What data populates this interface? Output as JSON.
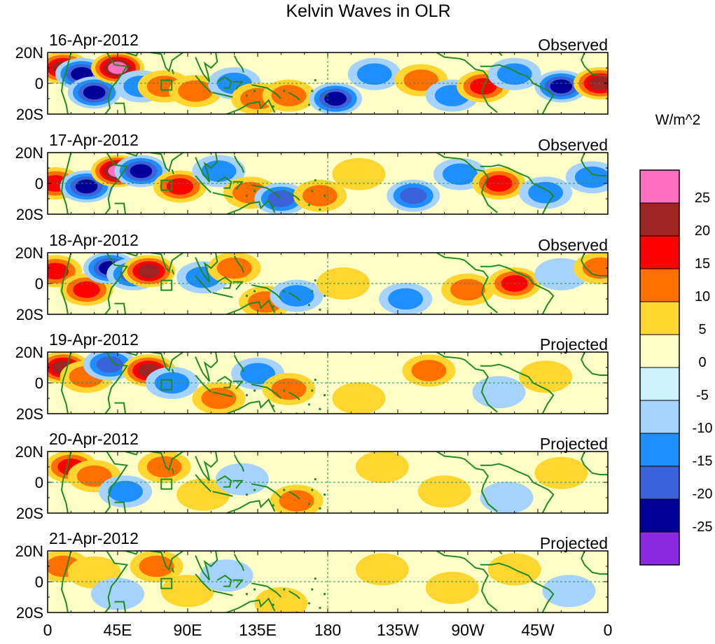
{
  "chart_data": {
    "type": "heatmap",
    "title": "Kelvin Waves in OLR",
    "variable": "OLR anomaly",
    "units": "W/m^2",
    "panels": [
      {
        "date": "16-Apr-2012",
        "status": "Observed"
      },
      {
        "date": "17-Apr-2012",
        "status": "Observed"
      },
      {
        "date": "18-Apr-2012",
        "status": "Observed"
      },
      {
        "date": "19-Apr-2012",
        "status": "Projected"
      },
      {
        "date": "20-Apr-2012",
        "status": "Projected"
      },
      {
        "date": "21-Apr-2012",
        "status": "Projected"
      }
    ],
    "xticks": [
      "0",
      "45E",
      "90E",
      "135E",
      "180",
      "135W",
      "90W",
      "45W",
      "0"
    ],
    "xlim": [
      0,
      360
    ],
    "yticks": [
      "20N",
      "0",
      "20S"
    ],
    "ylim": [
      -20,
      20
    ],
    "colorbar": {
      "label": "W/m^2",
      "levels": [
        "25",
        "20",
        "15",
        "10",
        "5",
        "0",
        "-5",
        "-10",
        "-15",
        "-20",
        "-25"
      ],
      "colors": [
        "#ff6fbe",
        "#9e2424",
        "#ff0000",
        "#ff7000",
        "#ffd630",
        "#ffffc8",
        "#ccf2fb",
        "#a6d2ff",
        "#1f8fff",
        "#3c62d9",
        "#000096",
        "#8a2be2"
      ]
    },
    "anomalies": [
      [
        [
          10,
          10,
          22
        ],
        [
          22,
          6,
          -22
        ],
        [
          30,
          -6,
          -24
        ],
        [
          45,
          10,
          25
        ],
        [
          60,
          -2,
          -14
        ],
        [
          75,
          -2,
          14
        ],
        [
          95,
          -5,
          12
        ],
        [
          120,
          0,
          -14
        ],
        [
          135,
          -10,
          14
        ],
        [
          155,
          -8,
          10
        ],
        [
          185,
          -10,
          -22
        ],
        [
          210,
          6,
          -12
        ],
        [
          240,
          2,
          12
        ],
        [
          260,
          -8,
          -10
        ],
        [
          280,
          -2,
          18
        ],
        [
          300,
          6,
          -14
        ],
        [
          330,
          -2,
          -22
        ],
        [
          355,
          0,
          22
        ]
      ],
      [
        [
          5,
          0,
          18
        ],
        [
          25,
          -2,
          -22
        ],
        [
          45,
          8,
          25
        ],
        [
          60,
          8,
          -22
        ],
        [
          85,
          -2,
          18
        ],
        [
          110,
          8,
          -14
        ],
        [
          130,
          -6,
          12
        ],
        [
          150,
          -10,
          -18
        ],
        [
          175,
          -8,
          14
        ],
        [
          200,
          6,
          8
        ],
        [
          235,
          -8,
          -18
        ],
        [
          265,
          6,
          -12
        ],
        [
          290,
          0,
          16
        ],
        [
          320,
          -6,
          -10
        ],
        [
          350,
          4,
          -12
        ]
      ],
      [
        [
          5,
          8,
          18
        ],
        [
          25,
          -4,
          16
        ],
        [
          40,
          10,
          -22
        ],
        [
          55,
          6,
          -16
        ],
        [
          65,
          8,
          20
        ],
        [
          100,
          4,
          -12
        ],
        [
          120,
          10,
          10
        ],
        [
          140,
          -12,
          14
        ],
        [
          160,
          -8,
          -12
        ],
        [
          190,
          0,
          6
        ],
        [
          230,
          -10,
          -12
        ],
        [
          270,
          -4,
          10
        ],
        [
          300,
          0,
          16
        ],
        [
          330,
          6,
          -8
        ],
        [
          355,
          10,
          10
        ]
      ],
      [
        [
          10,
          10,
          20
        ],
        [
          25,
          4,
          14
        ],
        [
          40,
          12,
          -18
        ],
        [
          65,
          8,
          22
        ],
        [
          80,
          0,
          -12
        ],
        [
          110,
          -10,
          12
        ],
        [
          135,
          6,
          -10
        ],
        [
          155,
          -4,
          10
        ],
        [
          200,
          -10,
          6
        ],
        [
          245,
          8,
          14
        ],
        [
          290,
          -6,
          -8
        ],
        [
          320,
          4,
          6
        ]
      ],
      [
        [
          15,
          10,
          18
        ],
        [
          30,
          4,
          10
        ],
        [
          50,
          -6,
          -10
        ],
        [
          75,
          10,
          14
        ],
        [
          100,
          -8,
          8
        ],
        [
          125,
          2,
          -8
        ],
        [
          160,
          -12,
          10
        ],
        [
          215,
          10,
          6
        ],
        [
          255,
          -6,
          6
        ],
        [
          295,
          -10,
          -6
        ],
        [
          330,
          6,
          6
        ]
      ],
      [
        [
          10,
          10,
          12
        ],
        [
          30,
          6,
          8
        ],
        [
          45,
          -8,
          -8
        ],
        [
          70,
          10,
          12
        ],
        [
          90,
          -6,
          8
        ],
        [
          115,
          4,
          -6
        ],
        [
          150,
          -14,
          8
        ],
        [
          215,
          8,
          4
        ],
        [
          260,
          -4,
          5
        ],
        [
          300,
          8,
          4
        ],
        [
          335,
          -6,
          -4
        ]
      ]
    ]
  }
}
